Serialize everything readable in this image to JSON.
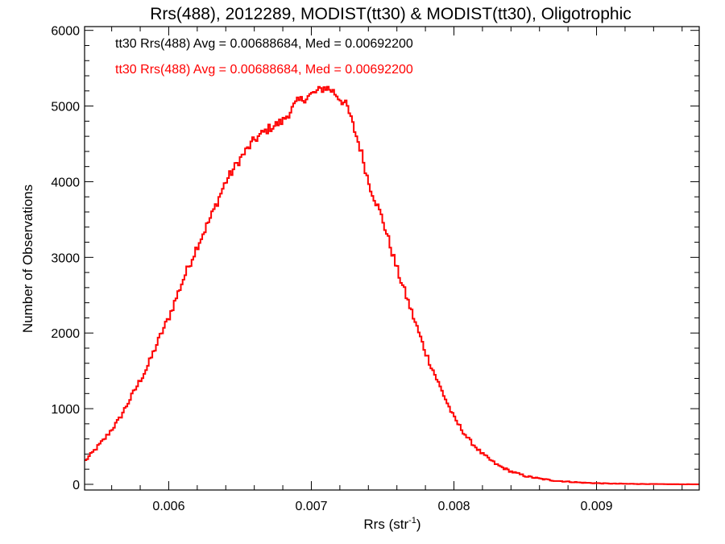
{
  "chart_data": {
    "type": "line",
    "title": "Rrs(488), 2012289, MODIST(tt30) & MODIST(tt30), Oligotrophic",
    "xlabel_main": "Rrs (str",
    "xlabel_sup": "-1",
    "xlabel_tail": ")",
    "ylabel": "Number of Observations",
    "xlim": [
      0.00541,
      0.00972
    ],
    "ylim": [
      -75,
      6050
    ],
    "x_ticks": [
      {
        "value": 0.006,
        "label": "0.006"
      },
      {
        "value": 0.007,
        "label": "0.007"
      },
      {
        "value": 0.008,
        "label": "0.008"
      },
      {
        "value": 0.009,
        "label": "0.009"
      }
    ],
    "y_ticks": [
      {
        "value": 0,
        "label": "0"
      },
      {
        "value": 1000,
        "label": "1000"
      },
      {
        "value": 2000,
        "label": "2000"
      },
      {
        "value": 3000,
        "label": "3000"
      },
      {
        "value": 4000,
        "label": "4000"
      },
      {
        "value": 5000,
        "label": "5000"
      },
      {
        "value": 6000,
        "label": "6000"
      }
    ],
    "legend_placement": "top-left",
    "legend": [
      {
        "text": "tt30 Rrs(488) Avg = 0.00688684, Med = 0.00692200",
        "color": "#000000"
      },
      {
        "text": "tt30 Rrs(488) Avg = 0.00688684, Med = 0.00692200",
        "color": "#ff0000"
      }
    ],
    "series": [
      {
        "color": "#ff0000",
        "style": "step",
        "x": [
          0.00541,
          0.00555,
          0.00565,
          0.00575,
          0.00585,
          0.00595,
          0.006,
          0.00605,
          0.0061,
          0.0062,
          0.0063,
          0.0064,
          0.0065,
          0.0066,
          0.0067,
          0.0068,
          0.0069,
          0.00695,
          0.007,
          0.00705,
          0.0071,
          0.00715,
          0.0072,
          0.00725,
          0.0073,
          0.00735,
          0.0074,
          0.00745,
          0.0075,
          0.0076,
          0.0077,
          0.0078,
          0.0079,
          0.008,
          0.0081,
          0.0082,
          0.0083,
          0.0084,
          0.0085,
          0.0086,
          0.0087,
          0.0088,
          0.0089,
          0.009,
          0.0091,
          0.0092,
          0.0093,
          0.0094,
          0.0095,
          0.0096,
          0.00972
        ],
        "y": [
          300,
          600,
          850,
          1200,
          1550,
          2000,
          2200,
          2450,
          2700,
          3150,
          3550,
          4000,
          4300,
          4550,
          4700,
          4800,
          5050,
          5100,
          5150,
          5200,
          5250,
          5200,
          5100,
          5000,
          4700,
          4400,
          4000,
          3750,
          3500,
          2850,
          2300,
          1750,
          1300,
          880,
          600,
          400,
          260,
          170,
          110,
          75,
          50,
          35,
          22,
          15,
          10,
          7,
          5,
          3,
          2,
          1,
          0
        ]
      }
    ]
  }
}
